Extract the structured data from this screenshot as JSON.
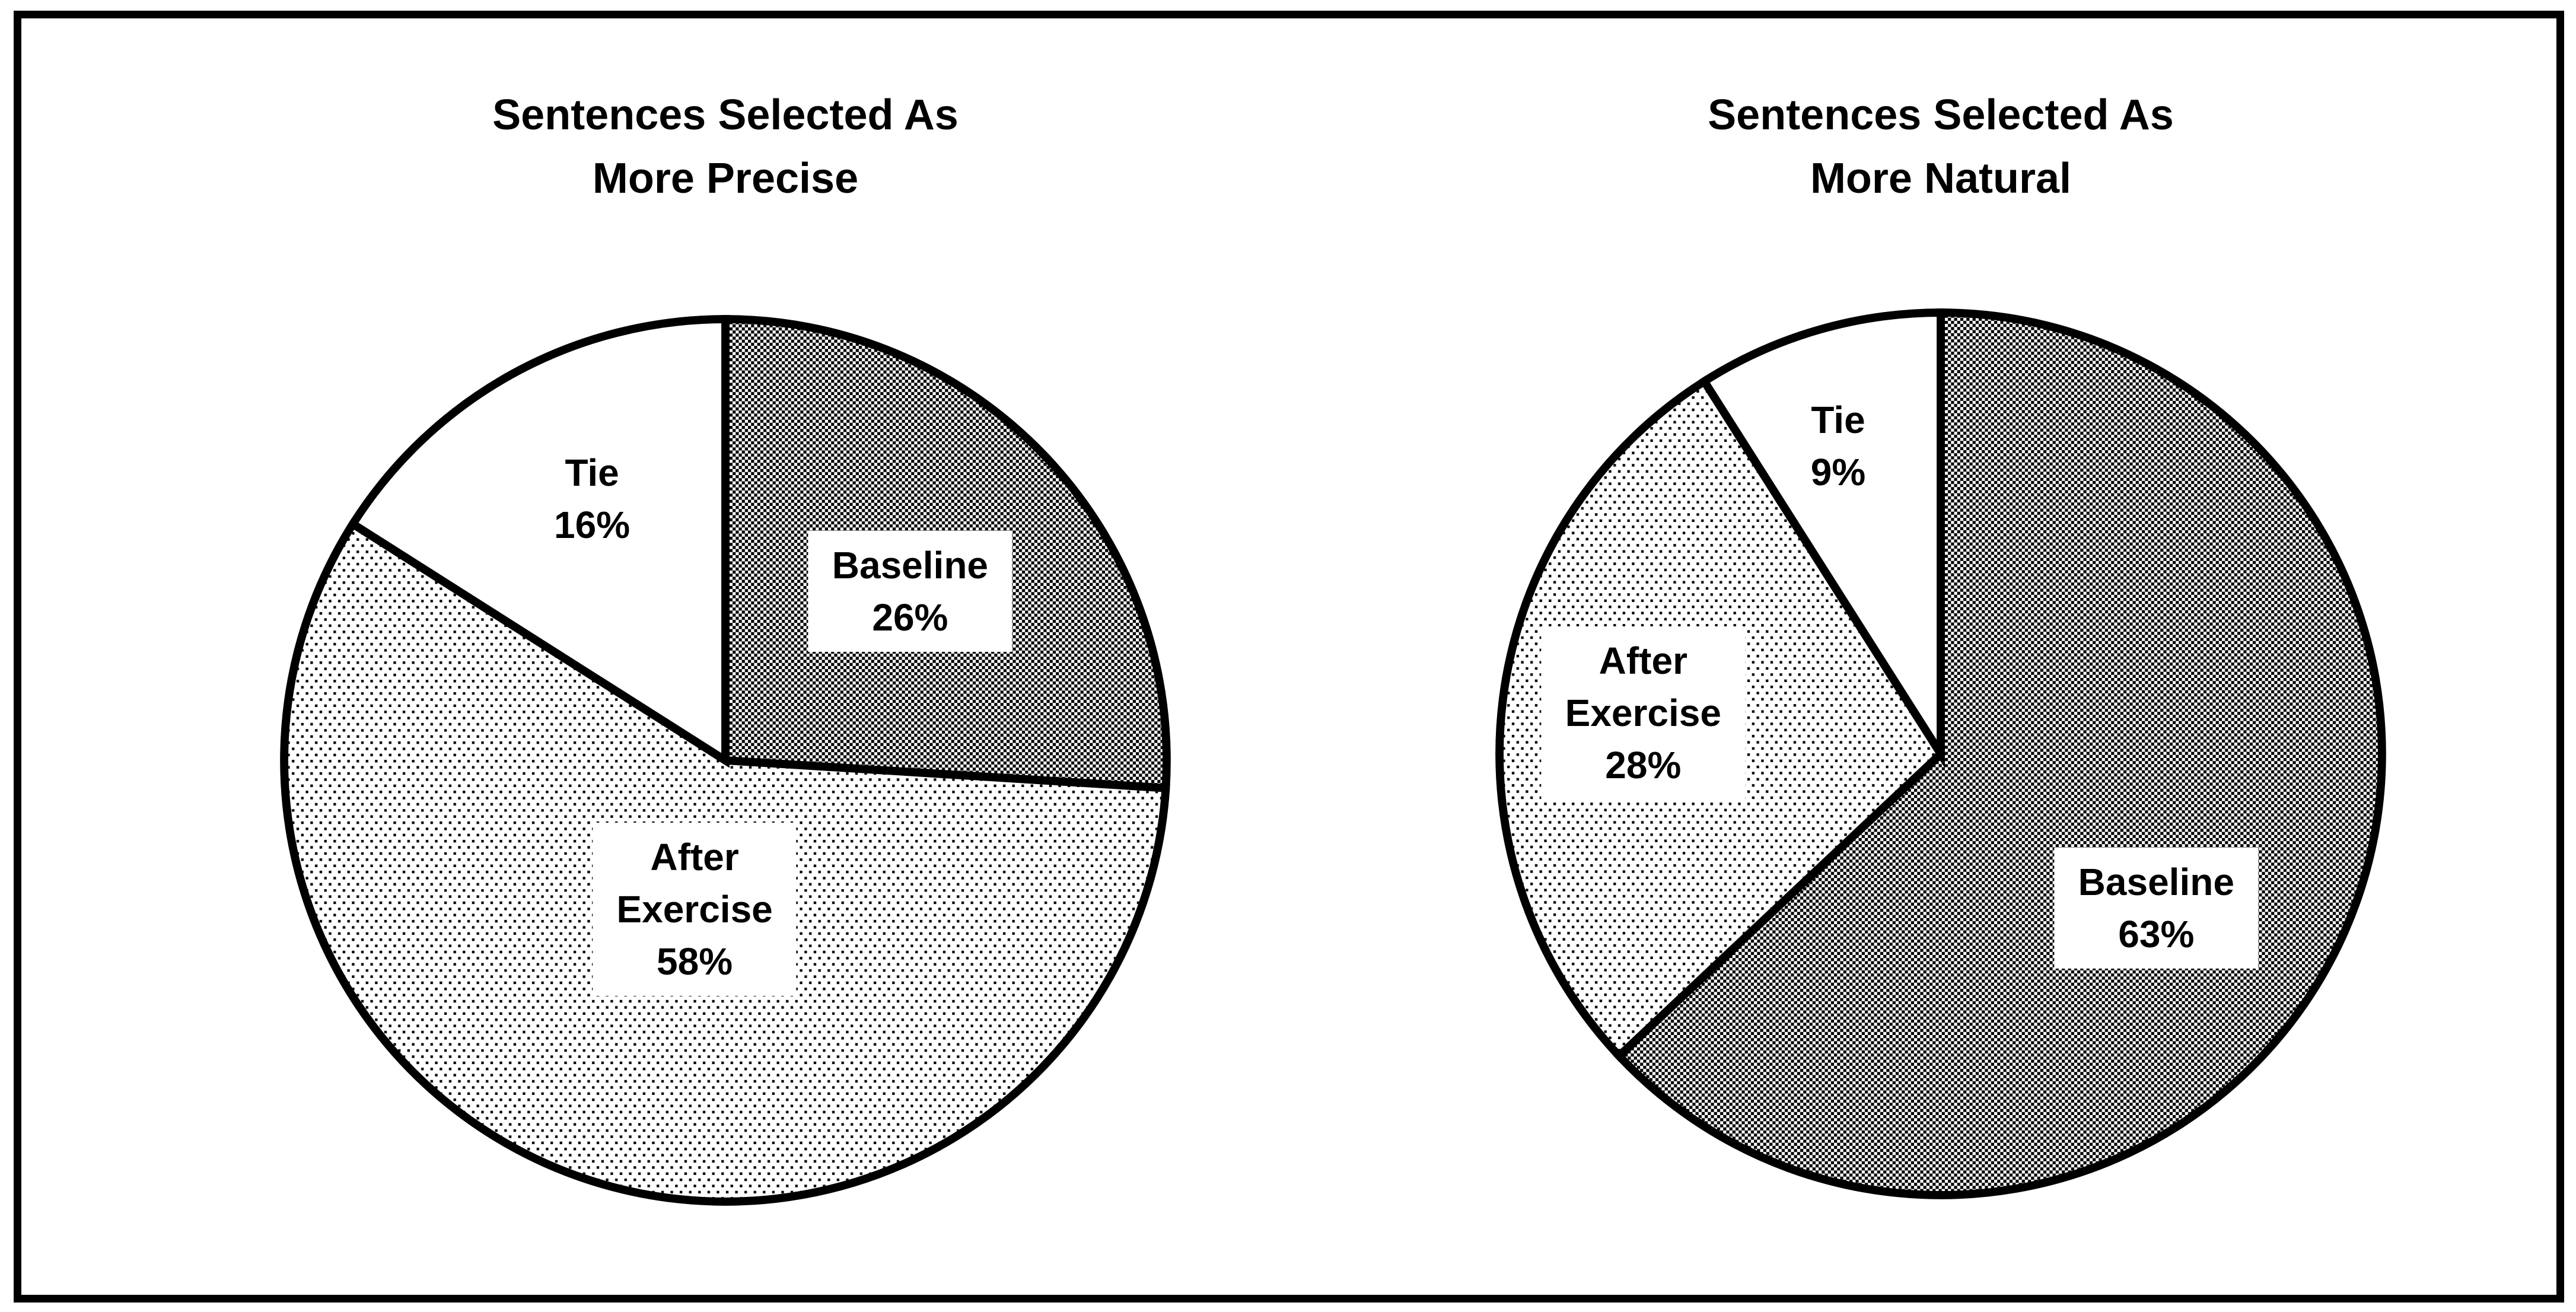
{
  "page": {
    "background": "#ffffff",
    "frame_border_color": "#000000",
    "ink_color": "#000000"
  },
  "chart_data": [
    {
      "type": "pie",
      "id": "precise",
      "title_lines": [
        "Sentences Selected As",
        "More Precise"
      ],
      "start_angle_deg": 0,
      "direction": "clockwise",
      "legend": "none",
      "categories": [
        "Baseline",
        "After Exercise",
        "Tie"
      ],
      "values": [
        26,
        58,
        16
      ],
      "unit": "%",
      "slices": [
        {
          "name": "Baseline",
          "pct": 26,
          "fill_pattern": "dark-checker",
          "boxed": true,
          "label_lines": [
            "Baseline",
            "26%"
          ],
          "label_pos": {
            "x_pct": 68,
            "y_pct": 33.5
          }
        },
        {
          "name": "After Exercise",
          "pct": 58,
          "fill_pattern": "light-dots",
          "boxed": true,
          "label_lines": [
            "After",
            "Exercise",
            "58%"
          ],
          "label_pos": {
            "x_pct": 47,
            "y_pct": 64.5
          }
        },
        {
          "name": "Tie",
          "pct": 16,
          "fill_pattern": "white",
          "boxed": false,
          "label_lines": [
            "Tie",
            "16%"
          ],
          "label_pos": {
            "x_pct": 37,
            "y_pct": 24.5
          }
        }
      ]
    },
    {
      "type": "pie",
      "id": "natural",
      "title_lines": [
        "Sentences Selected As",
        "More Natural"
      ],
      "start_angle_deg": 0,
      "direction": "clockwise",
      "legend": "none",
      "categories": [
        "Baseline",
        "After Exercise",
        "Tie"
      ],
      "values": [
        63,
        28,
        9
      ],
      "unit": "%",
      "slices": [
        {
          "name": "Baseline",
          "pct": 63,
          "fill_pattern": "dark-checker",
          "boxed": true,
          "label_lines": [
            "Baseline",
            "63%"
          ],
          "label_pos": {
            "x_pct": 71,
            "y_pct": 65
          }
        },
        {
          "name": "After Exercise",
          "pct": 28,
          "fill_pattern": "light-dots",
          "boxed": true,
          "label_lines": [
            "After",
            "Exercise",
            "28%"
          ],
          "label_pos": {
            "x_pct": 21,
            "y_pct": 46
          }
        },
        {
          "name": "Tie",
          "pct": 9,
          "fill_pattern": "white",
          "boxed": false,
          "label_lines": [
            "Tie",
            "9%"
          ],
          "label_pos": {
            "x_pct": 40,
            "y_pct": 20
          }
        }
      ]
    }
  ],
  "styles": {
    "fill_legend": {
      "dark-checker": "fine black/white checkerboard (reads as dark gray)",
      "light-dots": "sparse black square dots on white (reads as light gray)",
      "white": "#ffffff"
    },
    "slice_outline_color": "#000000"
  }
}
